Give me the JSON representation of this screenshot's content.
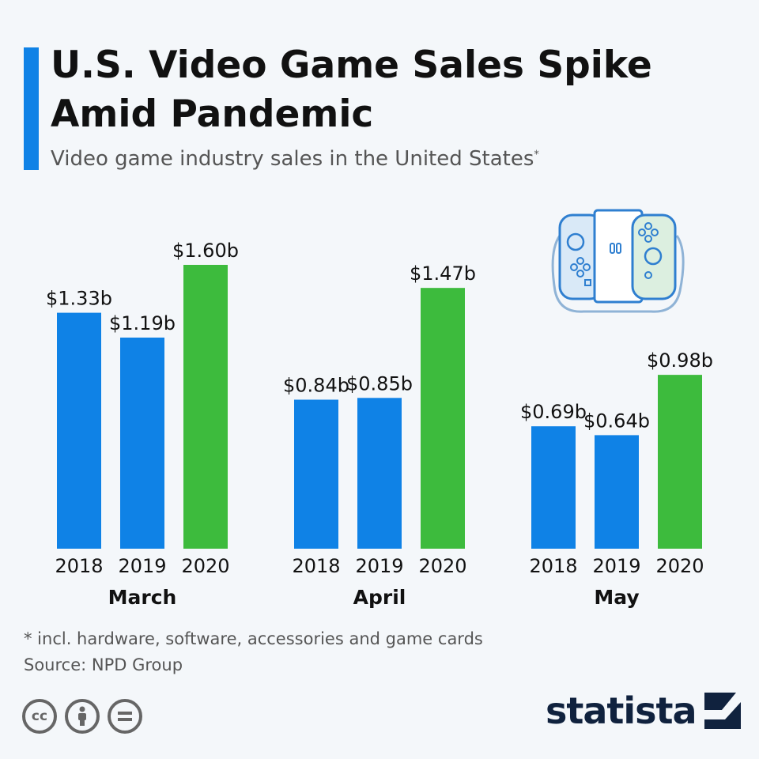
{
  "header": {
    "title": "U.S. Video Game Sales Spike Amid Pandemic",
    "subtitle": "Video game industry sales in the United States",
    "subtitle_marker": "*"
  },
  "chart_data": {
    "type": "bar",
    "groups": [
      {
        "label": "March",
        "categories": [
          "2018",
          "2019",
          "2020"
        ],
        "values": [
          1.33,
          1.19,
          1.6
        ],
        "labels": [
          "$1.33b",
          "$1.19b",
          "$1.60b"
        ]
      },
      {
        "label": "April",
        "categories": [
          "2018",
          "2019",
          "2020"
        ],
        "values": [
          0.84,
          0.85,
          1.47
        ],
        "labels": [
          "$0.84b",
          "$0.85b",
          "$1.47b"
        ]
      },
      {
        "label": "May",
        "categories": [
          "2018",
          "2019",
          "2020"
        ],
        "values": [
          0.69,
          0.64,
          0.98
        ],
        "labels": [
          "$0.69b",
          "$0.64b",
          "$0.98b"
        ]
      }
    ],
    "colors": {
      "previous_years": "#0f82e6",
      "2020": "#3dbb3d"
    },
    "grid": false,
    "ylim": [
      0,
      1.6
    ]
  },
  "footer": {
    "note": "* incl. hardware, software, accessories and game cards",
    "source": "Source: NPD Group",
    "license_icons": [
      "cc-icon",
      "attribution-icon",
      "no-derivatives-icon"
    ],
    "brand": "statista"
  }
}
